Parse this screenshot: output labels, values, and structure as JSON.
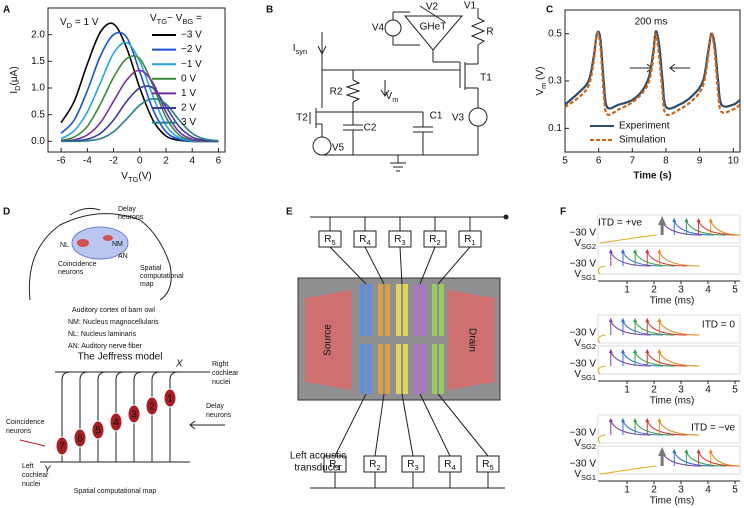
{
  "chart_data": [
    {
      "type": "line",
      "annotation": [
        "V",
        "D",
        " = 1 V"
      ],
      "legend_title": [
        "V",
        "TG",
        "− V",
        "BG",
        " ="
      ],
      "xlabel": [
        "V",
        "TG",
        "(V)"
      ],
      "ylabel": [
        "I",
        "D",
        "(μA)"
      ],
      "x": [
        -6,
        -5,
        -4,
        -3,
        -2,
        -1,
        0,
        1,
        2,
        3,
        4,
        5,
        6
      ],
      "series": [
        {
          "name": "−3 V",
          "color": "#000000",
          "values": [
            0.35,
            0.75,
            1.45,
            2.05,
            2.2,
            1.75,
            1.0,
            0.4,
            0.1,
            0.02,
            0,
            0,
            0
          ]
        },
        {
          "name": "−2 V",
          "color": "#1f4fd8",
          "values": [
            0.15,
            0.4,
            0.95,
            1.6,
            2.0,
            1.95,
            1.3,
            0.6,
            0.18,
            0.04,
            0,
            0,
            0
          ]
        },
        {
          "name": "−1 V",
          "color": "#2aa6d6",
          "values": [
            0.05,
            0.2,
            0.55,
            1.1,
            1.65,
            1.85,
            1.5,
            0.85,
            0.3,
            0.07,
            0.01,
            0,
            0
          ]
        },
        {
          "name": "0 V",
          "color": "#3a8a3a",
          "values": [
            0.02,
            0.08,
            0.28,
            0.7,
            1.2,
            1.55,
            1.55,
            1.05,
            0.45,
            0.12,
            0.02,
            0,
            0
          ]
        },
        {
          "name": "1 V",
          "color": "#7a2fa0",
          "values": [
            0.01,
            0.03,
            0.12,
            0.35,
            0.75,
            1.15,
            1.33,
            1.1,
            0.55,
            0.18,
            0.04,
            0.01,
            0
          ]
        },
        {
          "name": "2 V",
          "color": "#3b3b9b",
          "values": [
            0,
            0.01,
            0.04,
            0.15,
            0.4,
            0.75,
            1.0,
            1.0,
            0.65,
            0.28,
            0.08,
            0.02,
            0
          ]
        },
        {
          "name": "3 V",
          "color": "#2a7f86",
          "values": [
            0,
            0,
            0.01,
            0.05,
            0.18,
            0.42,
            0.68,
            0.8,
            0.7,
            0.4,
            0.15,
            0.04,
            0.01
          ]
        }
      ],
      "xlim": [
        -7,
        6.5
      ],
      "ylim": [
        -0.2,
        2.5
      ],
      "xticks": [
        -6,
        -4,
        -2,
        0,
        2,
        4,
        6
      ],
      "yticks": [
        {
          "value": 0,
          "label": "0.0"
        },
        {
          "value": 0.5,
          "label": "0.5"
        },
        {
          "value": 1,
          "label": "1.0"
        },
        {
          "value": 1.5,
          "label": "1.5"
        },
        {
          "value": 2,
          "label": "2.0"
        }
      ],
      "legend": "upper right"
    },
    {
      "type": "line",
      "annotation": "200 ms",
      "xlabel": "Time (s)",
      "ylabel": [
        "V",
        "m",
        " (V)"
      ],
      "x": [
        5.0,
        5.4,
        5.7,
        5.85,
        5.95,
        6.05,
        6.15,
        6.25,
        6.6,
        7.0,
        7.3,
        7.5,
        7.62,
        7.7,
        7.8,
        7.9,
        8.0,
        8.4,
        8.8,
        9.1,
        9.25,
        9.35,
        9.45,
        9.55,
        9.65,
        10.0,
        10.2
      ],
      "series": [
        {
          "name": "Experiment",
          "color": "#2e4d6b",
          "style": "solid",
          "values": [
            0.2,
            0.25,
            0.3,
            0.4,
            0.5,
            0.48,
            0.3,
            0.19,
            0.2,
            0.22,
            0.26,
            0.32,
            0.42,
            0.51,
            0.45,
            0.3,
            0.19,
            0.2,
            0.24,
            0.3,
            0.42,
            0.5,
            0.45,
            0.3,
            0.2,
            0.2,
            0.22
          ]
        },
        {
          "name": "Simulation",
          "color": "#c8651b",
          "style": "dashed",
          "values": [
            0.19,
            0.23,
            0.28,
            0.38,
            0.5,
            0.45,
            0.25,
            0.16,
            0.18,
            0.21,
            0.25,
            0.3,
            0.4,
            0.5,
            0.4,
            0.25,
            0.16,
            0.18,
            0.22,
            0.28,
            0.4,
            0.5,
            0.42,
            0.25,
            0.17,
            0.18,
            0.2
          ]
        }
      ],
      "xlim": [
        5,
        10.2
      ],
      "ylim": [
        0,
        0.6
      ],
      "xticks": [
        5,
        6,
        7,
        8,
        9,
        10
      ],
      "yticks": [
        0.1,
        0.3,
        0.5
      ],
      "legend": "lower right"
    }
  ],
  "panel_labels": [
    "A",
    "B",
    "C",
    "D",
    "E",
    "F"
  ],
  "circuit": {
    "labels": [
      "V4",
      "V2",
      "V1",
      "GHeT",
      "R",
      [
        "I",
        "syn"
      ],
      "T1",
      "R2",
      [
        "V",
        "m"
      ],
      "C1",
      "V3",
      "T2",
      "C2",
      "V5"
    ]
  },
  "owl": {
    "delay": [
      "Delay",
      "neurons"
    ],
    "nl": "NL",
    "nm": "NM",
    "an": "AN",
    "coincidence": [
      "Coincidence",
      "neurons"
    ],
    "spatial": [
      "Spatial",
      "computational",
      "map"
    ],
    "caption": "Auditory cortex of barn owl",
    "legend": [
      "NM: Nucleus magnocellularis",
      "NL: Nucleus laminaris",
      "AN: Auditory nerve fiber"
    ]
  },
  "jeffress": {
    "title": "The Jeffress model",
    "x": "X",
    "y": "Y",
    "right": [
      "Right",
      "cochlear",
      "nuclei"
    ],
    "left": [
      "Left",
      "cochlear",
      "nuclei"
    ],
    "coincidence": [
      "Coincidence",
      "neurons"
    ],
    "delay": [
      "Delay",
      "neurons"
    ],
    "map": "Spatial computational map",
    "neurons": [
      1,
      2,
      3,
      4,
      5,
      6,
      7
    ]
  },
  "device": {
    "source": "Source",
    "drain": "Drain",
    "top": [
      [
        "R",
        "5"
      ],
      [
        "R",
        "4"
      ],
      [
        "R",
        "3"
      ],
      [
        "R",
        "2"
      ],
      [
        "R",
        "1"
      ]
    ],
    "bottom": [
      [
        "R",
        "1"
      ],
      [
        "R",
        "2"
      ],
      [
        "R",
        "3"
      ],
      [
        "R",
        "4"
      ],
      [
        "R",
        "5"
      ]
    ],
    "transducer": [
      "Left acoustic",
      "transducer"
    ]
  },
  "spikes": {
    "groups": [
      {
        "title": "ITD = +ve",
        "traces": [
          {
            "level": "−30 V",
            "name": [
              "V",
              "SG2"
            ]
          },
          {
            "level": "−30 V",
            "name": [
              "V",
              "SG1"
            ]
          }
        ]
      },
      {
        "title": "ITD = 0",
        "traces": [
          {
            "level": "−30 V",
            "name": [
              "V",
              "SG2"
            ]
          },
          {
            "level": "−30 V",
            "name": [
              "V",
              "SG1"
            ]
          }
        ]
      },
      {
        "title": "ITD = −ve",
        "traces": [
          {
            "level": "−30 V",
            "name": [
              "V",
              "SG2"
            ]
          },
          {
            "level": "−30 V",
            "name": [
              "V",
              "SG1"
            ]
          }
        ]
      }
    ],
    "xticks": [
      1,
      2,
      3,
      4,
      5
    ],
    "xlabel": "Time (ms)"
  }
}
